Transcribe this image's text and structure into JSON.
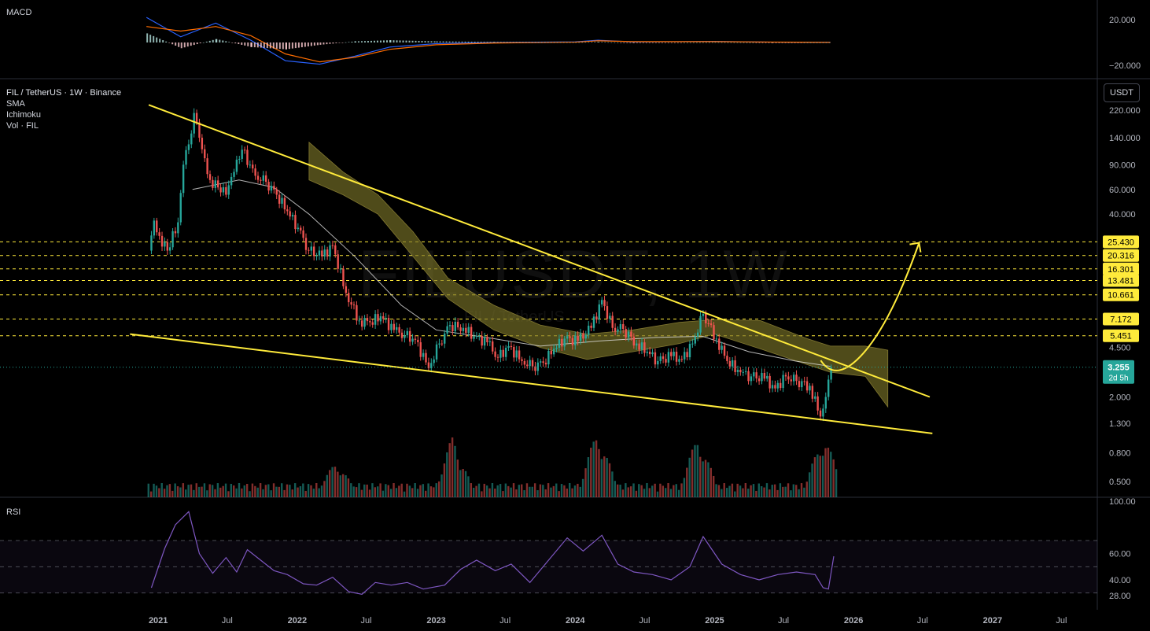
{
  "header": {
    "symbol_line": "FIL / TetherUS · 1W · Binance",
    "indicators": [
      "SMA",
      "Ichimoku",
      "Vol · FIL"
    ],
    "macd_label": "MACD",
    "rsi_label": "RSI",
    "unit_button": "USDT",
    "watermark": "FILUSDT, 1W",
    "watermark_sub": "FIL / TetherUS"
  },
  "colors": {
    "background": "#000000",
    "bull": "#26a69a",
    "bear": "#ef5350",
    "trendline": "#ffeb3b",
    "cloud": "#7a7428",
    "sma": "#e0e0e0",
    "rsi": "#7e57c2",
    "macd": "#2962ff",
    "signal": "#ff6d00",
    "price_badge": "#26a69a"
  },
  "chart_data": [
    {
      "type": "line",
      "pane": "MACD",
      "ylim": [
        -25,
        25
      ],
      "y_ticks": [
        "20.000",
        "−20.000"
      ],
      "series": [
        {
          "name": "MACD",
          "x": [
            "2020-12",
            "2021-03",
            "2021-06",
            "2021-09",
            "2021-12",
            "2022-03",
            "2022-06",
            "2022-09",
            "2023-01",
            "2023-06",
            "2024-01",
            "2024-03",
            "2024-06",
            "2025-01",
            "2025-06",
            "2025-11"
          ],
          "values": [
            22,
            5,
            17,
            2,
            -16,
            -19,
            -12,
            -4,
            -1,
            0,
            0.5,
            2,
            0.5,
            1,
            0.3,
            0.2
          ]
        },
        {
          "name": "Signal",
          "x": [
            "2020-12",
            "2021-03",
            "2021-06",
            "2021-09",
            "2021-12",
            "2022-03",
            "2022-06",
            "2022-09",
            "2023-01",
            "2023-06",
            "2024-01",
            "2024-03",
            "2024-06",
            "2025-01",
            "2025-06",
            "2025-11"
          ],
          "values": [
            14,
            10,
            14,
            6,
            -10,
            -17,
            -13,
            -6,
            -2,
            -0.5,
            0.3,
            1.5,
            0.8,
            0.8,
            0.4,
            0.1
          ]
        }
      ]
    },
    {
      "type": "candlestick",
      "pane": "price",
      "scale": "log",
      "ylim": [
        0.4,
        250
      ],
      "x_ticks": [
        "2021",
        "Jul",
        "2022",
        "Jul",
        "2023",
        "Jul",
        "2024",
        "Jul",
        "2025",
        "Jul",
        "2026",
        "Jul",
        "2027",
        "Jul"
      ],
      "y_ticks": [
        "220.000",
        "140.000",
        "90.000",
        "60.000",
        "40.000",
        "4.500",
        "2.000",
        "1.300",
        "0.800",
        "0.500"
      ],
      "horizontal_levels": [
        25.43,
        20.316,
        16.301,
        13.481,
        10.661,
        7.172,
        5.451
      ],
      "horizontal_level_labels": [
        "25.430",
        "20.316",
        "16.301",
        "13.481",
        "10.661",
        "7.172",
        "5.451"
      ],
      "last_price": "3.255",
      "countdown": "2d 5h",
      "price_path": {
        "x": [
          "2020-12-07",
          "2020-12-21",
          "2021-01-04",
          "2021-01-25",
          "2021-02-22",
          "2021-03-08",
          "2021-03-29",
          "2021-04-05",
          "2021-04-19",
          "2021-05-03",
          "2021-05-17",
          "2021-06-07",
          "2021-06-28",
          "2021-07-19",
          "2021-08-09",
          "2021-08-30",
          "2021-09-13",
          "2021-10-11",
          "2021-11-08",
          "2021-12-06",
          "2022-01-03",
          "2022-01-31",
          "2022-03-07",
          "2022-04-04",
          "2022-05-09",
          "2022-06-13",
          "2022-07-11",
          "2022-08-08",
          "2022-09-12",
          "2022-10-10",
          "2022-11-07",
          "2022-12-12",
          "2023-01-09",
          "2023-02-06",
          "2023-03-13",
          "2023-04-10",
          "2023-05-15",
          "2023-06-12",
          "2023-07-10",
          "2023-08-14",
          "2023-09-11",
          "2023-10-09",
          "2023-11-06",
          "2023-12-04",
          "2024-01-08",
          "2024-02-12",
          "2024-03-11",
          "2024-04-08",
          "2024-05-06",
          "2024-06-10",
          "2024-07-08",
          "2024-08-05",
          "2024-09-09",
          "2024-10-07",
          "2024-11-04",
          "2024-12-02",
          "2025-01-06",
          "2025-02-03",
          "2025-03-10",
          "2025-04-07",
          "2025-05-12",
          "2025-06-09",
          "2025-07-07",
          "2025-08-04",
          "2025-09-08",
          "2025-10-06",
          "2025-10-20",
          "2025-11-03"
        ],
        "close": [
          22,
          36,
          28,
          22,
          35,
          90,
          150,
          210,
          140,
          100,
          70,
          62,
          55,
          80,
          115,
          90,
          75,
          68,
          55,
          42,
          32,
          22,
          20,
          24,
          11,
          7,
          6.8,
          7.5,
          6,
          5.5,
          5.1,
          3.2,
          4.8,
          6.5,
          6.2,
          5.4,
          4.9,
          3.8,
          4.6,
          3.6,
          3.3,
          3.5,
          4.4,
          5.2,
          5.0,
          6.2,
          9.8,
          6.2,
          6.1,
          4.8,
          4.2,
          3.6,
          3.9,
          3.7,
          4.8,
          7.8,
          5.2,
          3.6,
          3.0,
          2.8,
          2.7,
          2.3,
          2.8,
          2.6,
          2.4,
          1.45,
          2.0,
          3.255
        ]
      },
      "sma_path": {
        "x": [
          "2021-04",
          "2021-08",
          "2021-11",
          "2022-02",
          "2022-06",
          "2022-10",
          "2023-01",
          "2023-06",
          "2023-10",
          "2024-03",
          "2024-08",
          "2024-12",
          "2025-04",
          "2025-08",
          "2025-11"
        ],
        "values": [
          60,
          70,
          62,
          40,
          20,
          9,
          6,
          5.2,
          4.6,
          5.0,
          5.3,
          5.4,
          4.2,
          3.6,
          3.3
        ]
      },
      "ichimoku_cloud": {
        "x": [
          "2022-02",
          "2022-05",
          "2022-08",
          "2022-11",
          "2023-02",
          "2023-06",
          "2023-10",
          "2024-02",
          "2024-06",
          "2024-10",
          "2025-01",
          "2025-05",
          "2025-09",
          "2025-11",
          "2026-02",
          "2026-04"
        ],
        "upper": [
          130,
          80,
          55,
          30,
          14,
          9,
          6.5,
          5.6,
          6.0,
          6.8,
          7.1,
          7.0,
          5.2,
          4.6,
          4.6,
          4.3
        ],
        "lower": [
          70,
          55,
          40,
          20,
          10,
          6.0,
          4.5,
          3.7,
          4.2,
          4.8,
          5.6,
          4.4,
          3.4,
          3.0,
          2.8,
          1.7
        ]
      },
      "trendlines": [
        {
          "name": "upper",
          "from": [
            "2020-12-07",
            240
          ],
          "to": [
            "2026-07-20",
            2.0
          ]
        },
        {
          "name": "lower",
          "from": [
            "2020-10-19",
            5.6
          ],
          "to": [
            "2026-07-27",
            1.1
          ]
        }
      ],
      "projection_arrow": {
        "from": [
          "2025-11-17",
          3.2
        ],
        "to": [
          "2026-06-22",
          25.0
        ]
      }
    },
    {
      "type": "bar",
      "pane": "volume",
      "description_values": "relative weekly volume, peaks in 2022 Q2, 2023 Q1, 2024 Q1, 2024 Q4, 2025 Q4"
    },
    {
      "type": "line",
      "pane": "RSI",
      "ylim": [
        25,
        100
      ],
      "y_ticks": [
        "100.00",
        "60.00",
        "40.00",
        "28.00"
      ],
      "bands": [
        70,
        50,
        30
      ],
      "series": [
        {
          "name": "RSI",
          "x": [
            "2020-12-14",
            "2021-01-18",
            "2021-02-15",
            "2021-03-22",
            "2021-04-19",
            "2021-05-24",
            "2021-06-28",
            "2021-07-26",
            "2021-08-23",
            "2021-09-27",
            "2021-11-01",
            "2021-12-06",
            "2022-01-17",
            "2022-02-21",
            "2022-04-04",
            "2022-05-16",
            "2022-06-20",
            "2022-07-25",
            "2022-09-05",
            "2022-10-17",
            "2022-11-28",
            "2023-01-23",
            "2023-03-06",
            "2023-04-17",
            "2023-06-05",
            "2023-07-17",
            "2023-09-04",
            "2023-10-23",
            "2023-12-11",
            "2024-01-22",
            "2024-03-11",
            "2024-04-22",
            "2024-06-03",
            "2024-07-22",
            "2024-09-09",
            "2024-10-28",
            "2024-12-02",
            "2025-01-20",
            "2025-03-10",
            "2025-04-28",
            "2025-06-16",
            "2025-08-04",
            "2025-09-22",
            "2025-10-13",
            "2025-10-27",
            "2025-11-10"
          ],
          "values": [
            34,
            64,
            82,
            92,
            60,
            45,
            57,
            46,
            63,
            55,
            47,
            44,
            37,
            36,
            42,
            31,
            29,
            38,
            36,
            38,
            33,
            36,
            48,
            55,
            47,
            52,
            38,
            55,
            72,
            62,
            74,
            52,
            46,
            44,
            40,
            50,
            73,
            52,
            44,
            40,
            44,
            46,
            44,
            34,
            33,
            58
          ]
        }
      ]
    }
  ]
}
